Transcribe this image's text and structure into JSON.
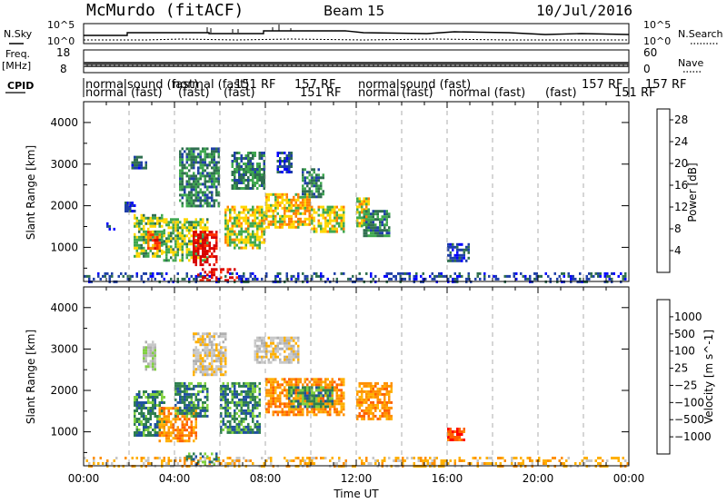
{
  "header": {
    "site_title": "McMurdo (fitACF)",
    "beam": "Beam 15",
    "date": "10/Jul/2016"
  },
  "noise_panel": {
    "left_label": "N.Sky",
    "right_label": "N.Search",
    "left_ticks": [
      "10^5",
      "10^0"
    ],
    "right_ticks": [
      "10^5",
      "10^0"
    ]
  },
  "freq_panel": {
    "left_label_line1": "Freq.",
    "left_label_line2": "[MHz]",
    "right_label": "Nave",
    "left_ticks": [
      "18",
      "8"
    ],
    "right_ticks": [
      "60",
      "0"
    ]
  },
  "cpid_panel": {
    "label": "CPID",
    "row1": [
      "normal",
      "sound (fast)",
      "normal (fast)",
      "157 RF",
      "151 RF",
      "normal",
      "sound (fast)",
      "157 RF",
      "157 RF"
    ],
    "row2": [
      "normal",
      "(fast)",
      "(fast)",
      "(fast)",
      "151 RF",
      "normal",
      "(fast)",
      "normal (fast)",
      "(fast)",
      "151 RF"
    ]
  },
  "x_axis": {
    "label": "Time UT",
    "ticks": [
      "00:00",
      "04:00",
      "08:00",
      "12:00",
      "16:00",
      "20:00",
      "00:00"
    ]
  },
  "colors": {
    "power_scale": [
      "#0000ff",
      "#1f3fa8",
      "#2f6f4f",
      "#3fa84f",
      "#ffd700",
      "#ff8000",
      "#ff3000",
      "#d80000"
    ],
    "velocity_scale": [
      "#ff0000",
      "#ff6000",
      "#ff9000",
      "#ffb000",
      "#c8c8c8",
      "#b0b0b0",
      "#80d040",
      "#2f7f4f",
      "#2050a0",
      "#0000ff"
    ]
  },
  "chart_data": [
    {
      "type": "heatmap",
      "title": "Power",
      "ylabel": "Slant Range [km]",
      "xlabel": "Time UT",
      "ylim": [
        180,
        4500
      ],
      "xlim": [
        0,
        24
      ],
      "y_ticks": [
        1000,
        2000,
        3000,
        4000
      ],
      "x_ticks": [
        "00:00",
        "04:00",
        "08:00",
        "12:00",
        "16:00",
        "20:00",
        "00:00"
      ],
      "colorbar": {
        "label": "Power [dB]",
        "ticks": [
          4,
          8,
          12,
          16,
          20,
          24,
          28
        ],
        "range": [
          0,
          30
        ]
      },
      "regions": [
        {
          "t": [
            0.0,
            24.0
          ],
          "r": [
            180,
            400
          ],
          "v": 6
        },
        {
          "t": [
            1.0,
            1.4
          ],
          "r": [
            1450,
            1600
          ],
          "v": 4
        },
        {
          "t": [
            1.8,
            2.3
          ],
          "r": [
            1900,
            2100
          ],
          "v": 6
        },
        {
          "t": [
            2.1,
            2.8
          ],
          "r": [
            2900,
            3200
          ],
          "v": 6
        },
        {
          "t": [
            2.2,
            3.5
          ],
          "r": [
            800,
            1800
          ],
          "v": 14
        },
        {
          "t": [
            2.8,
            3.4
          ],
          "r": [
            1000,
            1400
          ],
          "v": 24
        },
        {
          "t": [
            3.5,
            5.5
          ],
          "r": [
            700,
            1700
          ],
          "v": 14
        },
        {
          "t": [
            4.8,
            5.9
          ],
          "r": [
            600,
            1400
          ],
          "v": 28
        },
        {
          "t": [
            4.2,
            6.0
          ],
          "r": [
            2000,
            3400
          ],
          "v": 10
        },
        {
          "t": [
            5.0,
            6.8
          ],
          "r": [
            150,
            500
          ],
          "v": 28
        },
        {
          "t": [
            6.2,
            8.0
          ],
          "r": [
            1000,
            2000
          ],
          "v": 16
        },
        {
          "t": [
            6.5,
            8.0
          ],
          "r": [
            2400,
            3300
          ],
          "v": 10
        },
        {
          "t": [
            8.0,
            10.0
          ],
          "r": [
            1500,
            2300
          ],
          "v": 18
        },
        {
          "t": [
            8.5,
            9.2
          ],
          "r": [
            2800,
            3300
          ],
          "v": 6
        },
        {
          "t": [
            10.0,
            11.5
          ],
          "r": [
            1400,
            2000
          ],
          "v": 16
        },
        {
          "t": [
            9.6,
            10.6
          ],
          "r": [
            2200,
            2900
          ],
          "v": 10
        },
        {
          "t": [
            12.0,
            12.6
          ],
          "r": [
            1500,
            2200
          ],
          "v": 16
        },
        {
          "t": [
            12.3,
            13.5
          ],
          "r": [
            1300,
            1900
          ],
          "v": 10
        },
        {
          "t": [
            16.0,
            17.0
          ],
          "r": [
            650,
            1100
          ],
          "v": 6
        }
      ]
    },
    {
      "type": "heatmap",
      "title": "Velocity",
      "ylabel": "Slant Range [km]",
      "xlabel": "Time UT",
      "ylim": [
        180,
        4500
      ],
      "xlim": [
        0,
        24
      ],
      "y_ticks": [
        1000,
        2000,
        3000,
        4000
      ],
      "x_ticks": [
        "00:00",
        "04:00",
        "08:00",
        "12:00",
        "16:00",
        "20:00",
        "00:00"
      ],
      "colorbar": {
        "label": "Velocity [m s^-1]",
        "ticks": [
          "1000",
          "500",
          "100",
          "25",
          "−25",
          "−100",
          "−500",
          "−1000"
        ]
      },
      "regions": [
        {
          "t": [
            0.0,
            24.0
          ],
          "r": [
            180,
            400
          ],
          "v": 3
        },
        {
          "t": [
            2.6,
            3.2
          ],
          "r": [
            2500,
            3200
          ],
          "v": 5
        },
        {
          "t": [
            2.2,
            3.6
          ],
          "r": [
            900,
            2000
          ],
          "v": 7
        },
        {
          "t": [
            3.3,
            5.0
          ],
          "r": [
            750,
            1600
          ],
          "v": 2
        },
        {
          "t": [
            4.0,
            5.5
          ],
          "r": [
            1400,
            2200
          ],
          "v": 7
        },
        {
          "t": [
            4.8,
            6.2
          ],
          "r": [
            2400,
            3400
          ],
          "v": 4
        },
        {
          "t": [
            6.0,
            7.8
          ],
          "r": [
            1000,
            2200
          ],
          "v": 7
        },
        {
          "t": [
            7.5,
            9.5
          ],
          "r": [
            2700,
            3300
          ],
          "v": 4
        },
        {
          "t": [
            8.0,
            11.5
          ],
          "r": [
            1400,
            2300
          ],
          "v": 2
        },
        {
          "t": [
            9.0,
            11.0
          ],
          "r": [
            1600,
            2100
          ],
          "v": 7
        },
        {
          "t": [
            12.0,
            13.6
          ],
          "r": [
            1300,
            2200
          ],
          "v": 2
        },
        {
          "t": [
            16.0,
            16.8
          ],
          "r": [
            800,
            1100
          ],
          "v": 1
        },
        {
          "t": [
            4.5,
            6.0
          ],
          "r": [
            180,
            500
          ],
          "v": 7
        }
      ]
    }
  ]
}
